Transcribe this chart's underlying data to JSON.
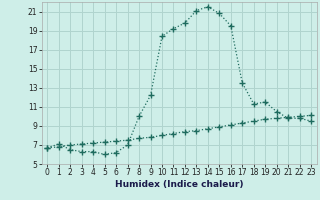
{
  "xlabel": "Humidex (Indice chaleur)",
  "bg_color": "#ceeee8",
  "grid_color": "#b0d4ce",
  "line_color": "#1e6b5e",
  "xlim": [
    -0.5,
    23.5
  ],
  "ylim": [
    5,
    22
  ],
  "yticks": [
    5,
    7,
    9,
    11,
    13,
    15,
    17,
    19,
    21
  ],
  "xticks": [
    0,
    1,
    2,
    3,
    4,
    5,
    6,
    7,
    8,
    9,
    10,
    11,
    12,
    13,
    14,
    15,
    16,
    17,
    18,
    19,
    20,
    21,
    22,
    23
  ],
  "curve1_x": [
    0,
    1,
    2,
    3,
    4,
    5,
    6,
    7,
    8,
    9,
    10,
    11,
    12,
    13,
    14,
    15,
    16,
    17,
    18,
    19,
    20,
    21,
    22,
    23
  ],
  "curve1_y": [
    6.7,
    7.1,
    6.5,
    6.3,
    6.3,
    6.0,
    6.2,
    7.0,
    10.0,
    12.2,
    18.4,
    19.2,
    19.8,
    21.1,
    21.5,
    20.8,
    19.5,
    13.5,
    11.3,
    11.5,
    10.5,
    9.8,
    9.8,
    9.5
  ],
  "curve2_x": [
    0,
    1,
    2,
    3,
    4,
    5,
    6,
    7,
    8,
    9,
    10,
    11,
    12,
    13,
    14,
    15,
    16,
    17,
    18,
    19,
    20,
    21,
    22,
    23
  ],
  "curve2_y": [
    6.7,
    6.8,
    7.0,
    7.1,
    7.2,
    7.3,
    7.4,
    7.5,
    7.7,
    7.8,
    8.0,
    8.2,
    8.4,
    8.5,
    8.7,
    8.9,
    9.1,
    9.3,
    9.5,
    9.7,
    9.8,
    9.9,
    10.0,
    10.1
  ],
  "tick_fontsize": 5.5,
  "xlabel_fontsize": 6.5
}
